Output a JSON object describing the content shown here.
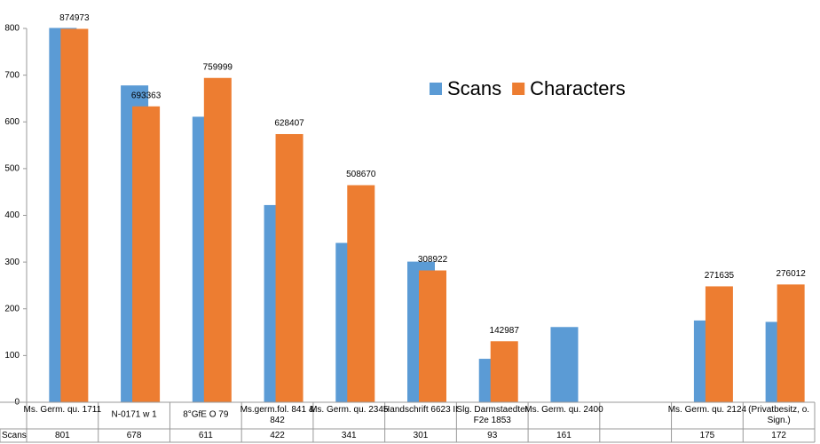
{
  "chart_data": {
    "type": "bar",
    "categories": [
      "Ms. Germ. qu. 1711",
      "N-0171 w 1",
      "8°GfE  O  79",
      "Ms.germ.fol. 841 & 842",
      "Ms. Germ. qu. 2345",
      "Handschrift 6623 II",
      "Slg. Darmstaedter F2e 1853",
      "Ms. Germ. qu. 2400",
      null,
      "Ms. Germ. qu. 2124",
      "(Privatbesitz, o. Sign.)"
    ],
    "series": [
      {
        "name": "Scans",
        "color": "#5b9bd5",
        "values": [
          801,
          678,
          611,
          422,
          341,
          301,
          93,
          161,
          null,
          175,
          172
        ]
      },
      {
        "name": "Characters",
        "color": "#ed7d31",
        "axis": "y2",
        "values": [
          874973,
          693363,
          759999,
          628407,
          508670,
          308922,
          142987,
          null,
          null,
          271635,
          276012
        ]
      }
    ],
    "ylim": [
      0,
      800
    ],
    "yticks": [
      0,
      100,
      200,
      300,
      400,
      500,
      600,
      700,
      800
    ],
    "y2lim": [
      0,
      876000
    ],
    "grid": false,
    "legend": "top-right"
  }
}
